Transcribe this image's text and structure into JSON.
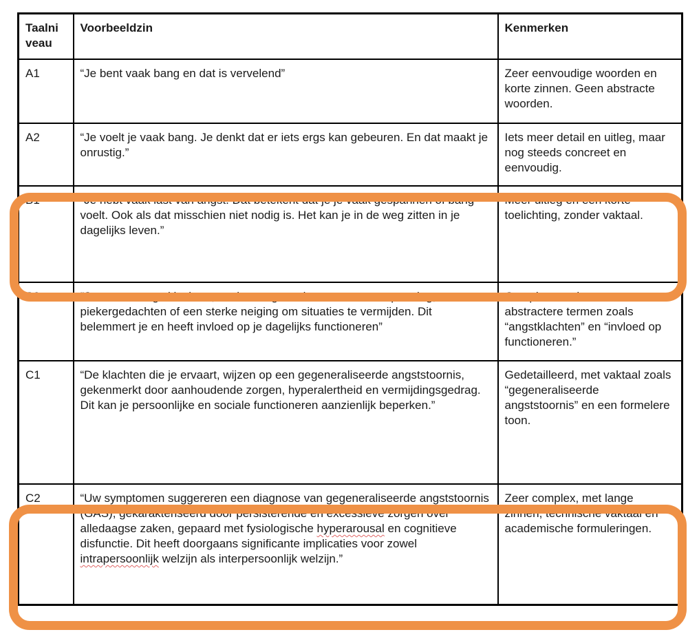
{
  "colors": {
    "highlight_orange": "#EF9146",
    "spellcheck_red": "#E06666",
    "border_black": "#000000",
    "text": "#1A1A1A",
    "background": "#FFFFFF"
  },
  "annotations": {
    "highlighted_rows": [
      "B1",
      "C2"
    ]
  },
  "table": {
    "header": {
      "taalniveau_line1": "Taalni",
      "taalniveau_line2": "veau",
      "taalniveau_full": "Taalniveau",
      "voorbeeldzin": "Voorbeeldzin",
      "kenmerken": "Kenmerken"
    },
    "rows": [
      {
        "level": "A1",
        "voorbeeldzin": "“Je bent vaak bang en dat is vervelend”",
        "kenmerken": "Zeer eenvoudige woorden en korte zinnen. Geen abstracte woorden."
      },
      {
        "level": "A2",
        "voorbeeldzin": "“Je voelt je vaak bang. Je denkt dat er iets ergs kan gebeuren. En dat maakt je onrustig.”",
        "kenmerken": "Iets meer detail en uitleg, maar nog steeds concreet en eenvoudig."
      },
      {
        "level": "B1",
        "highlighted": true,
        "voorbeeldzin": "“Je hebt vaak last van angst. Dat betekent dat je je vaak gespannen of bang voelt. Ook als dat misschien niet nodig is. Het kan je in de weg zitten in je dagelijks leven.”",
        "kenmerken": "Meer uitleg en een korte toelichting, zonder vaktaal."
      },
      {
        "level": "B2",
        "voorbeeldzin": "“Je ervaart angstklachten, zoals een gevoel van constante spanning, piekergedachten of een sterke neiging om situaties te vermijden. Dit belemmert je en heeft invloed op je dagelijks functioneren”",
        "kenmerken": "Complexere zinnen en abstractere termen zoals “angstklachten” en “invloed op functioneren.”"
      },
      {
        "level": "C1",
        "voorbeeldzin": "“De klachten die je ervaart, wijzen op een gegeneraliseerde angststoornis, gekenmerkt door aanhoudende zorgen, hyperalertheid en vermijdingsgedrag. Dit kan je persoonlijke en sociale functioneren aanzienlijk beperken.”",
        "kenmerken": "Gedetailleerd, met vaktaal zoals “gegeneraliseerde angststoornis” en een formelere toon."
      },
      {
        "level": "C2",
        "highlighted": true,
        "voorbeeldzin_segments": [
          {
            "text": "“Uw symptomen suggereren een diagnose van gegeneraliseerde angststoornis (GAS), gekarakteriseerd door persisterende en excessieve zorgen over alledaagse zaken, gepaard met fysiologische ",
            "misspelled": false
          },
          {
            "text": "hyperarousal",
            "misspelled": true
          },
          {
            "text": " en cognitieve disfunctie. Dit heeft doorgaans significante implicaties voor zowel ",
            "misspelled": false
          },
          {
            "text": "intrapersoonlijk",
            "misspelled": true
          },
          {
            "text": " welzijn als interpersoonlijk welzijn.”",
            "misspelled": false
          }
        ],
        "kenmerken": "Zeer complex, met lange zinnen, technische vaktaal en academische formuleringen."
      }
    ]
  }
}
